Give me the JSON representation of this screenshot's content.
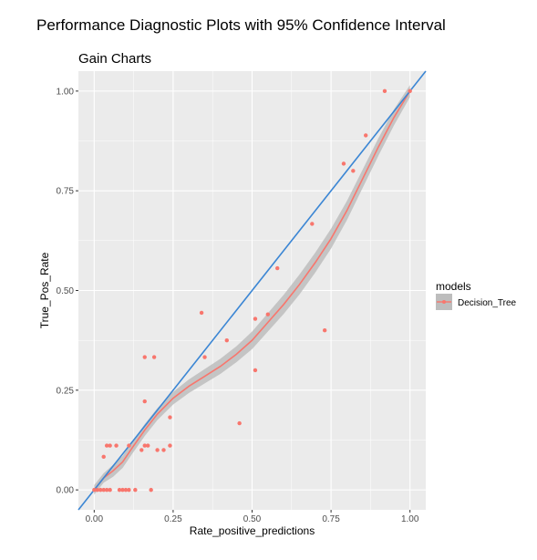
{
  "titles": {
    "main": "Performance Diagnostic Plots with 95% Confidence Interval",
    "sub": "Gain Charts"
  },
  "chart_data": {
    "type": "scatter",
    "title": "Gain Charts",
    "xlabel": "Rate_positive_predictions",
    "ylabel": "True_Pos_Rate",
    "xlim": [
      -0.05,
      1.05
    ],
    "ylim": [
      -0.05,
      1.05
    ],
    "x_ticks": [
      0.0,
      0.25,
      0.5,
      0.75,
      1.0
    ],
    "x_tick_labels": [
      "0.00",
      "0.25",
      "0.50",
      "0.75",
      "1.00"
    ],
    "y_ticks": [
      0.0,
      0.25,
      0.5,
      0.75,
      1.0
    ],
    "y_tick_labels": [
      "0.00",
      "0.25",
      "0.50",
      "0.75",
      "1.00"
    ],
    "grid": true,
    "legend_position": "right",
    "legend_title": "models",
    "colors": {
      "panel_bg": "#ebebeb",
      "grid": "#ffffff",
      "series": "#f8766d",
      "ribbon": "#bdbdbd",
      "reference_line": "#3b86d4"
    },
    "series": [
      {
        "name": "Decision_Tree",
        "points": [
          [
            0.0,
            0.0
          ],
          [
            0.01,
            0.0
          ],
          [
            0.02,
            0.0
          ],
          [
            0.03,
            0.0
          ],
          [
            0.04,
            0.0
          ],
          [
            0.05,
            0.0
          ],
          [
            0.03,
            0.083
          ],
          [
            0.04,
            0.111
          ],
          [
            0.05,
            0.111
          ],
          [
            0.07,
            0.111
          ],
          [
            0.08,
            0.0
          ],
          [
            0.09,
            0.0
          ],
          [
            0.1,
            0.0
          ],
          [
            0.11,
            0.0
          ],
          [
            0.13,
            0.0
          ],
          [
            0.11,
            0.111
          ],
          [
            0.15,
            0.1
          ],
          [
            0.16,
            0.111
          ],
          [
            0.17,
            0.111
          ],
          [
            0.16,
            0.222
          ],
          [
            0.16,
            0.333
          ],
          [
            0.19,
            0.333
          ],
          [
            0.2,
            0.1
          ],
          [
            0.22,
            0.1
          ],
          [
            0.24,
            0.111
          ],
          [
            0.24,
            0.182
          ],
          [
            0.18,
            0.0
          ],
          [
            0.34,
            0.444
          ],
          [
            0.35,
            0.333
          ],
          [
            0.42,
            0.375
          ],
          [
            0.46,
            0.167
          ],
          [
            0.51,
            0.3
          ],
          [
            0.51,
            0.429
          ],
          [
            0.55,
            0.44
          ],
          [
            0.58,
            0.556
          ],
          [
            0.69,
            0.667
          ],
          [
            0.73,
            0.4
          ],
          [
            0.79,
            0.818
          ],
          [
            0.82,
            0.8
          ],
          [
            0.86,
            0.889
          ],
          [
            0.92,
            1.0
          ],
          [
            1.0,
            1.0
          ]
        ],
        "smooth": {
          "x": [
            0.0,
            0.03,
            0.06,
            0.09,
            0.12,
            0.16,
            0.2,
            0.25,
            0.3,
            0.35,
            0.4,
            0.45,
            0.5,
            0.55,
            0.6,
            0.65,
            0.7,
            0.75,
            0.8,
            0.85,
            0.9,
            0.95,
            1.0
          ],
          "y": [
            0.0,
            0.03,
            0.048,
            0.07,
            0.105,
            0.15,
            0.19,
            0.23,
            0.26,
            0.285,
            0.31,
            0.34,
            0.375,
            0.42,
            0.465,
            0.515,
            0.57,
            0.63,
            0.7,
            0.78,
            0.86,
            0.935,
            1.0
          ],
          "lower": [
            -0.012,
            0.018,
            0.033,
            0.055,
            0.09,
            0.135,
            0.175,
            0.214,
            0.243,
            0.267,
            0.291,
            0.32,
            0.353,
            0.397,
            0.441,
            0.49,
            0.545,
            0.605,
            0.676,
            0.757,
            0.838,
            0.915,
            0.985
          ],
          "upper": [
            0.012,
            0.042,
            0.063,
            0.085,
            0.12,
            0.165,
            0.205,
            0.246,
            0.277,
            0.303,
            0.329,
            0.36,
            0.397,
            0.443,
            0.489,
            0.54,
            0.595,
            0.655,
            0.724,
            0.803,
            0.882,
            0.955,
            1.015
          ]
        }
      }
    ],
    "reference_line": {
      "x": [
        -0.05,
        1.05
      ],
      "y": [
        -0.05,
        1.05
      ]
    }
  }
}
